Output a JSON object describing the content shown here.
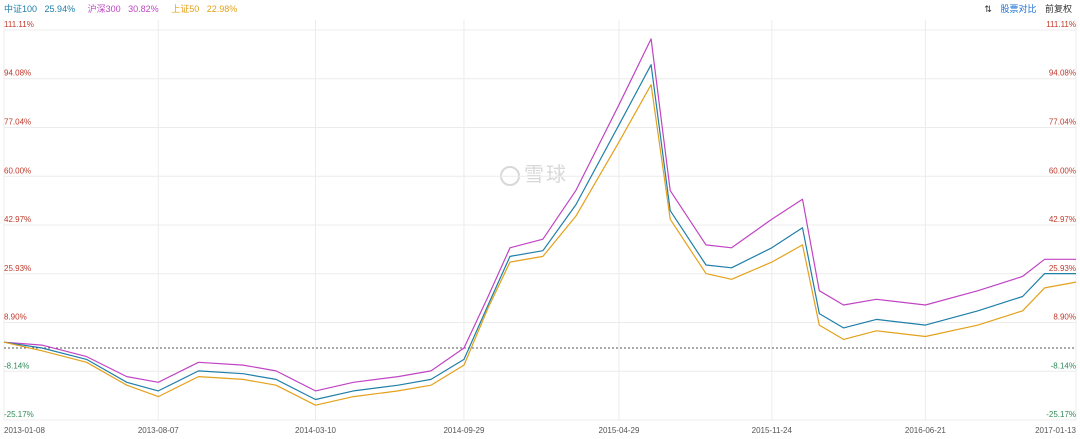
{
  "legend": {
    "s1": {
      "name": "中证100",
      "pct": "25.94%",
      "color": "#1f7fa8"
    },
    "s2": {
      "name": "沪深300",
      "pct": "30.82%",
      "color": "#c044c4"
    },
    "s3": {
      "name": "上证50",
      "pct": "22.98%",
      "color": "#e3a11c"
    }
  },
  "controls": {
    "compare_label": "股票对比",
    "adjust_label": "前复权",
    "compare_icon": "toggle-arrows-icon"
  },
  "watermark": {
    "text": "雪球"
  },
  "colors": {
    "positive": "#c0392b",
    "negative": "#2e8b57",
    "baseline": "#555555",
    "grid": "#ececec"
  },
  "chart_data": {
    "type": "line",
    "y_ticks": [
      "111.11%",
      "94.08%",
      "77.04%",
      "60.00%",
      "42.97%",
      "25.93%",
      "8.90%",
      "-8.14%",
      "-25.17%"
    ],
    "y_tick_values": [
      111.11,
      94.08,
      77.04,
      60.0,
      42.97,
      25.93,
      8.9,
      -8.14,
      -25.17
    ],
    "ylim": [
      -25.17,
      111.11
    ],
    "x_ticks": [
      "2013-01-08",
      "2013-08-07",
      "2014-03-10",
      "2014-09-29",
      "2015-04-29",
      "2015-11-24",
      "2016-06-21",
      "2017-01-13"
    ],
    "x": [
      "2013-01-08",
      "2013-03-01",
      "2013-05-01",
      "2013-06-25",
      "2013-08-07",
      "2013-10-01",
      "2013-12-01",
      "2014-01-15",
      "2014-03-10",
      "2014-05-01",
      "2014-07-01",
      "2014-08-15",
      "2014-09-29",
      "2014-11-01",
      "2014-12-01",
      "2015-01-15",
      "2015-03-01",
      "2015-04-29",
      "2015-06-12",
      "2015-07-08",
      "2015-08-26",
      "2015-09-30",
      "2015-11-24",
      "2016-01-05",
      "2016-01-28",
      "2016-03-01",
      "2016-04-15",
      "2016-06-21",
      "2016-09-01",
      "2016-11-01",
      "2016-12-01",
      "2017-01-13"
    ],
    "series": [
      {
        "name": "沪深300",
        "color": "#c044c4",
        "values": [
          2,
          1,
          -3,
          -10,
          -12,
          -5,
          -6,
          -8,
          -15,
          -12,
          -10,
          -8,
          0,
          18,
          35,
          38,
          55,
          85,
          108,
          55,
          36,
          35,
          45,
          52,
          20,
          15,
          17,
          15,
          20,
          25,
          31,
          31
        ]
      },
      {
        "name": "中证100",
        "color": "#1f7fa8",
        "values": [
          2,
          0,
          -4,
          -12,
          -15,
          -8,
          -9,
          -11,
          -18,
          -15,
          -13,
          -11,
          -4,
          15,
          32,
          34,
          50,
          78,
          99,
          48,
          29,
          28,
          35,
          42,
          12,
          7,
          10,
          8,
          13,
          18,
          26,
          26
        ]
      },
      {
        "name": "上证50",
        "color": "#e3a11c",
        "values": [
          2,
          -1,
          -5,
          -13,
          -17,
          -10,
          -11,
          -13,
          -20,
          -17,
          -15,
          -13,
          -6,
          14,
          30,
          32,
          46,
          72,
          92,
          45,
          26,
          24,
          30,
          36,
          8,
          3,
          6,
          4,
          8,
          13,
          21,
          23
        ]
      }
    ],
    "baseline": 0,
    "grid": true,
    "legend_placement": "top-left"
  }
}
